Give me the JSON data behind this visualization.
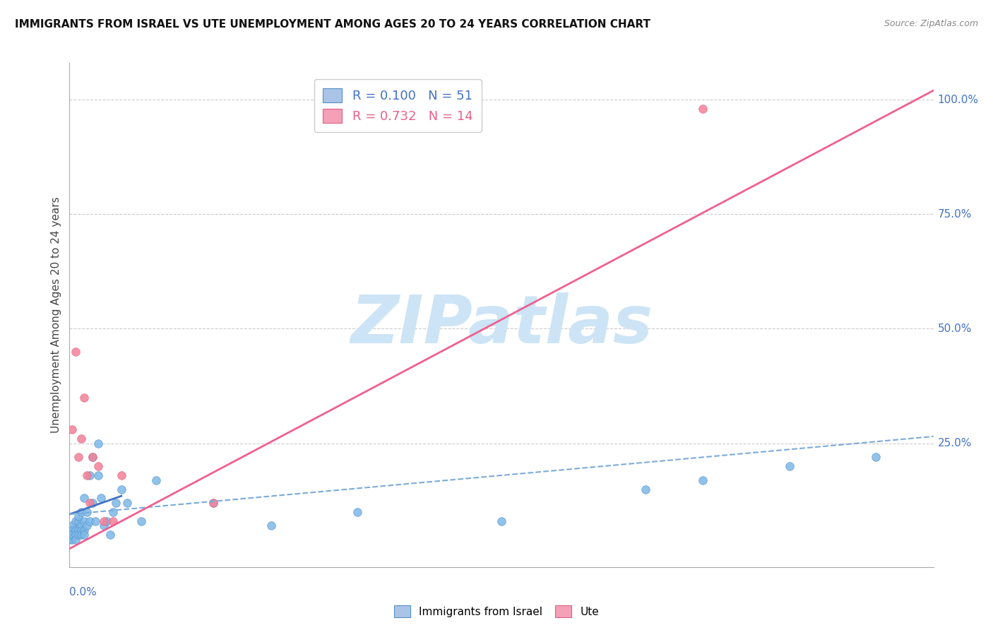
{
  "title": "IMMIGRANTS FROM ISRAEL VS UTE UNEMPLOYMENT AMONG AGES 20 TO 24 YEARS CORRELATION CHART",
  "source": "Source: ZipAtlas.com",
  "ylabel": "Unemployment Among Ages 20 to 24 years",
  "right_yticks": [
    "25.0%",
    "50.0%",
    "75.0%",
    "100.0%"
  ],
  "right_ytick_vals": [
    0.25,
    0.5,
    0.75,
    1.0
  ],
  "xmin": 0.0,
  "xmax": 0.3,
  "ymin": -0.02,
  "ymax": 1.08,
  "legend1_r": "R = 0.100",
  "legend1_n": "N = 51",
  "legend2_r": "R = 0.732",
  "legend2_n": "N = 14",
  "legend1_color": "#aac4e8",
  "legend2_color": "#f4a0b8",
  "scatter_israel_color": "#7db8e8",
  "scatter_ute_color": "#f48098",
  "trend_israel_solid_color": "#4472c4",
  "trend_ute_color": "#f06090",
  "trend_israel_dashed_color": "#7aabda",
  "watermark": "ZIPatlas",
  "watermark_color": "#cce4f5",
  "israel_scatter_x": [
    0.0,
    0.0,
    0.0,
    0.001,
    0.001,
    0.001,
    0.001,
    0.001,
    0.002,
    0.002,
    0.002,
    0.002,
    0.003,
    0.003,
    0.003,
    0.003,
    0.004,
    0.004,
    0.004,
    0.004,
    0.005,
    0.005,
    0.005,
    0.005,
    0.006,
    0.006,
    0.007,
    0.007,
    0.008,
    0.008,
    0.009,
    0.01,
    0.01,
    0.011,
    0.012,
    0.013,
    0.014,
    0.015,
    0.016,
    0.018,
    0.02,
    0.025,
    0.03,
    0.05,
    0.07,
    0.1,
    0.15,
    0.2,
    0.22,
    0.25,
    0.28
  ],
  "israel_scatter_y": [
    0.05,
    0.04,
    0.06,
    0.05,
    0.07,
    0.04,
    0.06,
    0.05,
    0.08,
    0.06,
    0.05,
    0.04,
    0.08,
    0.06,
    0.05,
    0.09,
    0.1,
    0.07,
    0.06,
    0.05,
    0.13,
    0.08,
    0.06,
    0.05,
    0.1,
    0.07,
    0.18,
    0.08,
    0.22,
    0.12,
    0.08,
    0.25,
    0.18,
    0.13,
    0.07,
    0.08,
    0.05,
    0.1,
    0.12,
    0.15,
    0.12,
    0.08,
    0.17,
    0.12,
    0.07,
    0.1,
    0.08,
    0.15,
    0.17,
    0.2,
    0.22
  ],
  "ute_scatter_x": [
    0.001,
    0.002,
    0.003,
    0.004,
    0.005,
    0.006,
    0.007,
    0.008,
    0.01,
    0.012,
    0.015,
    0.018,
    0.05,
    0.22
  ],
  "ute_scatter_y": [
    0.28,
    0.45,
    0.22,
    0.26,
    0.35,
    0.18,
    0.12,
    0.22,
    0.2,
    0.08,
    0.08,
    0.18,
    0.12,
    0.98
  ],
  "trend_israel_solid_x0": 0.0,
  "trend_israel_solid_x1": 0.018,
  "trend_israel_solid_y0": 0.095,
  "trend_israel_solid_y1": 0.135,
  "trend_israel_dashed_x0": 0.0,
  "trend_israel_dashed_x1": 0.3,
  "trend_israel_dashed_y0": 0.095,
  "trend_israel_dashed_y1": 0.265,
  "trend_ute_x0": 0.0,
  "trend_ute_x1": 0.3,
  "trend_ute_y0": 0.02,
  "trend_ute_y1": 1.02
}
